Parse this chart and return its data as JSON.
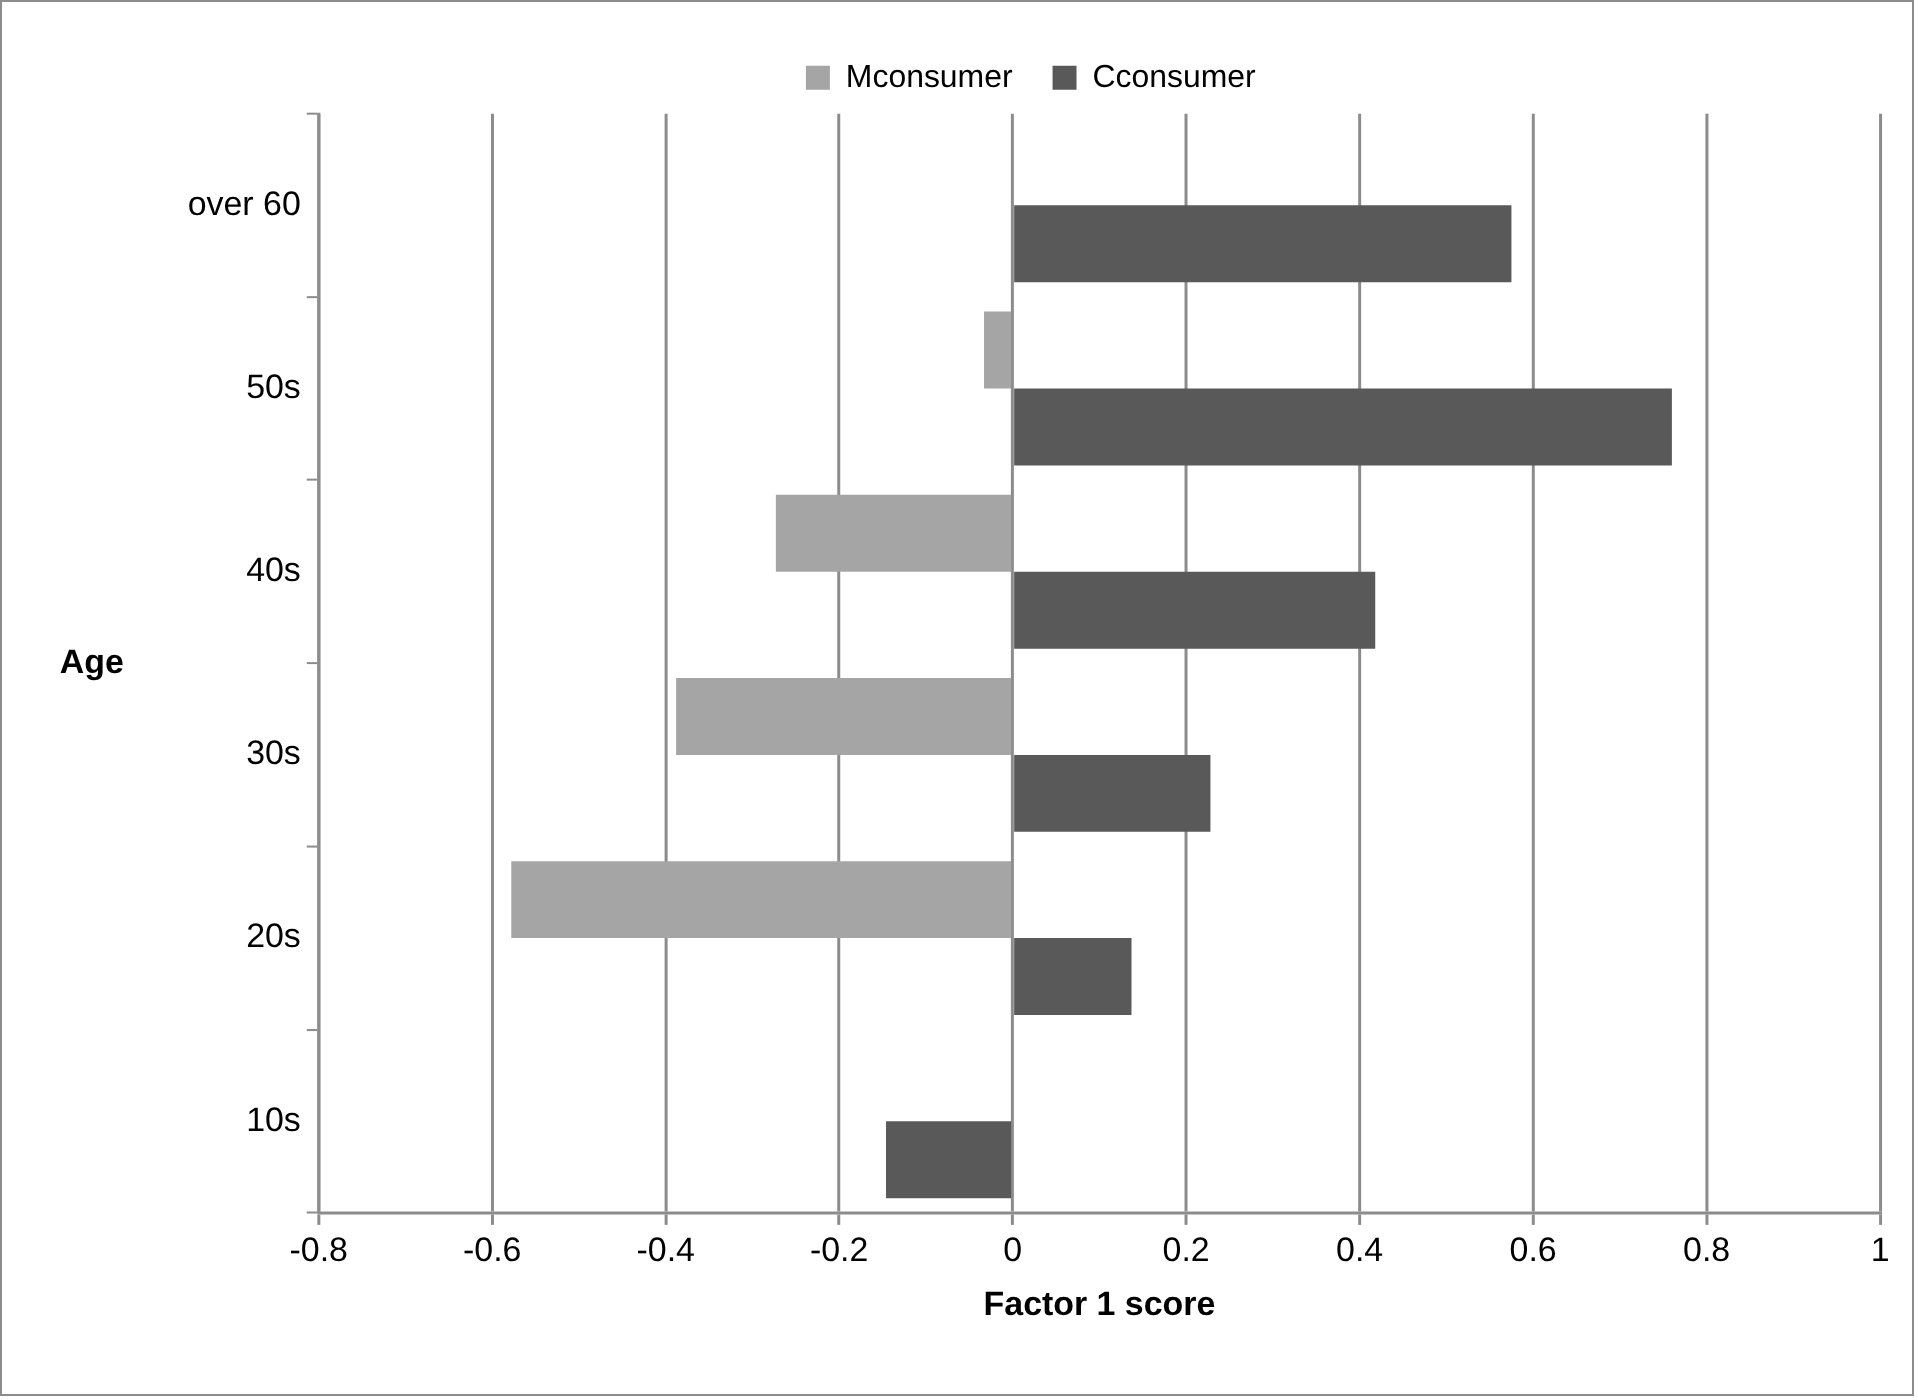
{
  "chart_data": {
    "type": "bar",
    "orientation": "horizontal",
    "xlabel": "Factor 1 score",
    "ylabel": "Age",
    "categories": [
      "over 60",
      "50s",
      "40s",
      "30s",
      "20s",
      "10s"
    ],
    "series": [
      {
        "name": "Mconsumer",
        "color": "#a5a5a5",
        "values": [
          null,
          -0.033,
          -0.273,
          -0.388,
          -0.578,
          null
        ]
      },
      {
        "name": "Cconsumer",
        "color": "#595959",
        "values": [
          0.575,
          0.76,
          0.418,
          0.228,
          0.137,
          -0.146
        ]
      }
    ],
    "xlim": [
      -0.8,
      1
    ],
    "xticks": [
      -0.8,
      -0.6,
      -0.4,
      -0.2,
      0,
      0.2,
      0.4,
      0.6,
      0.8,
      1
    ],
    "grid": "x",
    "legend": "top"
  }
}
